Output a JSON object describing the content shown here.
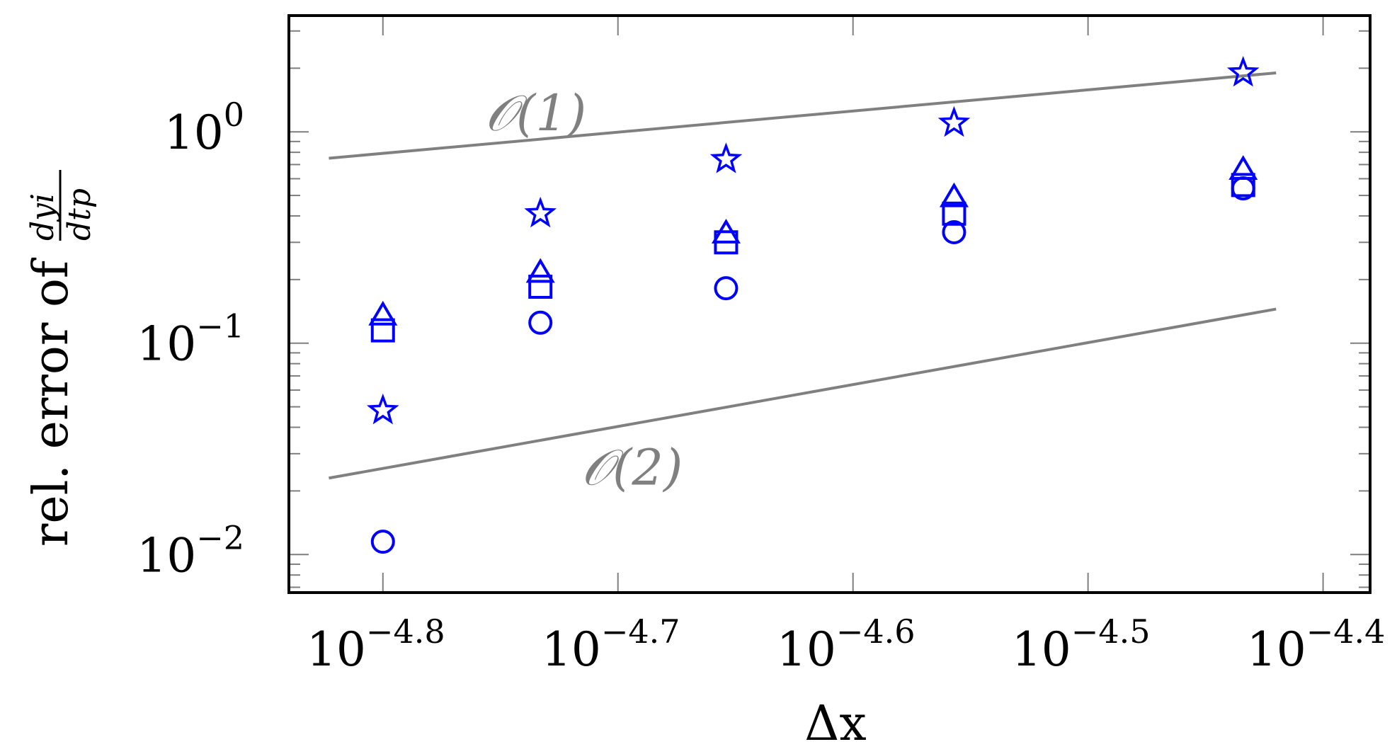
{
  "chart_data": {
    "type": "scatter",
    "x_scale": "log10",
    "y_scale": "log10",
    "xlim": [
      -4.84,
      -4.38
    ],
    "ylim": [
      -2.18,
      0.55
    ],
    "xlabel": "Δx",
    "ylabel": "rel. error of",
    "ylabel_fraction": {
      "numerator": "dyi",
      "denominator": "dtp"
    },
    "x_ticks": [
      {
        "base": "10",
        "exp": "−4.8",
        "value": -4.8
      },
      {
        "base": "10",
        "exp": "−4.7",
        "value": -4.7
      },
      {
        "base": "10",
        "exp": "−4.6",
        "value": -4.6
      },
      {
        "base": "10",
        "exp": "−4.5",
        "value": -4.5
      },
      {
        "base": "10",
        "exp": "−4.4",
        "value": -4.4
      }
    ],
    "y_ticks": [
      {
        "base": "10",
        "exp": "0",
        "value": 0
      },
      {
        "base": "10",
        "exp": "−1",
        "value": -1
      },
      {
        "base": "10",
        "exp": "−2",
        "value": -2
      }
    ],
    "x": [
      -4.8,
      -4.733,
      -4.654,
      -4.557,
      -4.434
    ],
    "series": [
      {
        "marker": "star",
        "values": [
          0.048,
          0.41,
          0.74,
          1.1,
          1.9
        ]
      },
      {
        "marker": "triangle",
        "values": [
          0.135,
          0.215,
          0.33,
          0.49,
          0.66
        ]
      },
      {
        "marker": "square",
        "values": [
          0.115,
          0.185,
          0.3,
          0.41,
          0.56
        ]
      },
      {
        "marker": "circle",
        "values": [
          0.0115,
          0.125,
          0.182,
          0.335,
          0.54
        ]
      }
    ],
    "reference_lines": [
      {
        "label": "𝒪(1)",
        "x": [
          -4.823,
          -4.42
        ],
        "y": [
          0.75,
          1.9
        ]
      },
      {
        "label": "𝒪(2)",
        "x": [
          -4.823,
          -4.42
        ],
        "y": [
          0.023,
          0.145
        ]
      }
    ],
    "colors": {
      "series": "#0000ff",
      "reference": "#808080",
      "axis": "#000000"
    }
  }
}
